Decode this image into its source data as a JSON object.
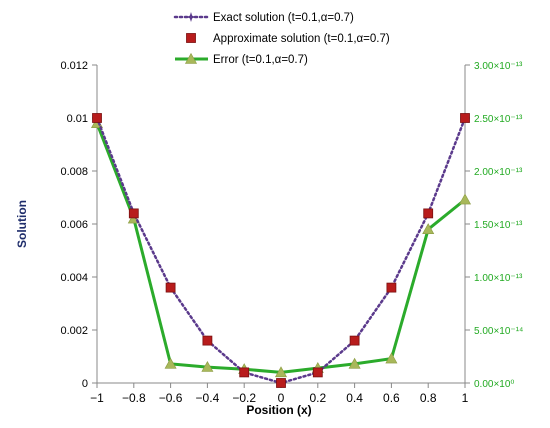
{
  "chart_data": {
    "type": "line",
    "xlabel": "Position (x)",
    "ylabel": "Solution",
    "x_ticks": [
      "−1",
      "−0.8",
      "−0.6",
      "−0.4",
      "−0.2",
      "0",
      "0.2",
      "0.4",
      "0.6",
      "0.8",
      "1"
    ],
    "y_left_ticks": [
      "0",
      "0.002",
      "0.004",
      "0.006",
      "0.008",
      "0.01",
      "0.012"
    ],
    "y_right_ticks": [
      "0.00×10⁰",
      "5.00×10⁻¹⁴",
      "1.00×10⁻¹³",
      "1.50×10⁻¹³",
      "2.00×10⁻¹³",
      "2.50×10⁻¹³",
      "3.00×10⁻¹³"
    ],
    "xlim": [
      -1,
      1
    ],
    "ylim_left": [
      0,
      0.012
    ],
    "ylim_right": [
      0,
      3e-13
    ],
    "x": [
      -1,
      -0.8,
      -0.6,
      -0.4,
      -0.2,
      0,
      0.2,
      0.4,
      0.6,
      0.8,
      1
    ],
    "series": [
      {
        "name": "Exact solution (t=0.1,α=0.7)",
        "axis": "left",
        "marker": "star",
        "line": "dotted",
        "color": "#5b3a8c",
        "values": [
          0.01,
          0.0064,
          0.0036,
          0.0016,
          0.0004,
          0.0,
          0.0004,
          0.0016,
          0.0036,
          0.0064,
          0.01
        ]
      },
      {
        "name": "Approximate solution (t=0.1,α=0.7)",
        "axis": "left",
        "marker": "square",
        "line": "none",
        "color": "#b81c1c",
        "values": [
          0.01,
          0.0064,
          0.0036,
          0.0016,
          0.0004,
          0.0,
          0.0004,
          0.0016,
          0.0036,
          0.0064,
          0.01
        ]
      },
      {
        "name": "Error (t=0.1,α=0.7)",
        "axis": "right",
        "marker": "triangle",
        "line": "solid",
        "color": "#2bab2b",
        "marker_color": "#a8b85a",
        "values": [
          2.45e-13,
          1.55e-13,
          1.8e-14,
          1.5e-14,
          1.3e-14,
          1e-14,
          1.4e-14,
          1.8e-14,
          2.3e-14,
          1.45e-13,
          1.73e-13
        ]
      }
    ],
    "legend_position": "top-center",
    "grid": false
  }
}
